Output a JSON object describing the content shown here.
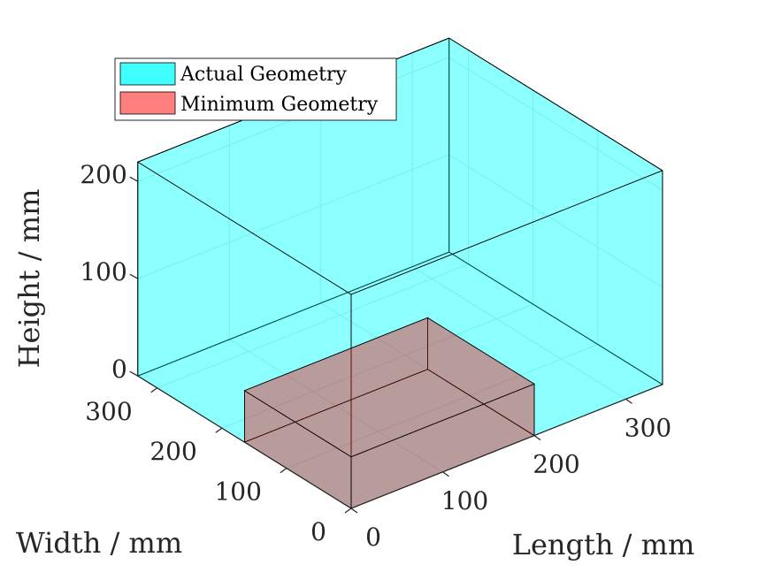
{
  "chart_data": {
    "type": "3d-box",
    "xlabel": "Length / mm",
    "ylabel": "Width / mm",
    "zlabel": "Height / mm",
    "xticks": [
      "0",
      "100",
      "200",
      "300"
    ],
    "yticks": [
      "0",
      "100",
      "200",
      "300"
    ],
    "zticks": [
      "0",
      "100",
      "200"
    ],
    "xlim": [
      0,
      340
    ],
    "ylim": [
      0,
      330
    ],
    "zlim": [
      0,
      220
    ],
    "grid": true,
    "legend_location": "top-left",
    "series": [
      {
        "name": "Actual Geometry",
        "color": "#00ffff",
        "opacity": 0.75,
        "length": 340,
        "width": 330,
        "height": 220
      },
      {
        "name": "Minimum Geometry",
        "color": "#ff0000",
        "opacity": 0.5,
        "length": 200,
        "width": 165,
        "height": 53
      }
    ]
  }
}
